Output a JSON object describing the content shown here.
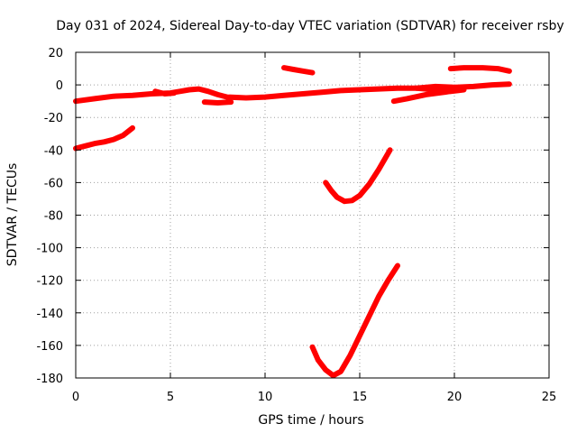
{
  "chart_data": {
    "type": "line",
    "title": "Day 031 of 2024, Sidereal Day-to-day VTEC variation (SDTVAR) for receiver rsby",
    "xlabel": "GPS time / hours",
    "ylabel": "SDTVAR / TECUs",
    "xlim": [
      0,
      25
    ],
    "ylim": [
      -180,
      20
    ],
    "xticks": [
      0,
      5,
      10,
      15,
      20,
      25
    ],
    "yticks": [
      20,
      0,
      -20,
      -40,
      -60,
      -80,
      -100,
      -120,
      -140,
      -160,
      -180
    ],
    "grid": true,
    "color": "#ff0000",
    "series": [
      {
        "values": [
          [
            0,
            -10
          ],
          [
            1,
            -8.5
          ],
          [
            2,
            -7
          ],
          [
            3,
            -6.5
          ],
          [
            4,
            -5.5
          ],
          [
            5,
            -5
          ],
          [
            5.5,
            -4
          ],
          [
            6,
            -3
          ],
          [
            6.5,
            -2.5
          ],
          [
            7,
            -4
          ],
          [
            7.5,
            -6
          ],
          [
            8,
            -7.5
          ],
          [
            9,
            -8
          ],
          [
            10,
            -7.5
          ],
          [
            11,
            -6.5
          ],
          [
            12,
            -5.5
          ],
          [
            13,
            -4.5
          ],
          [
            14,
            -3.5
          ],
          [
            15,
            -3
          ],
          [
            16,
            -2.5
          ],
          [
            17,
            -2
          ],
          [
            18,
            -2
          ],
          [
            19,
            -1
          ],
          [
            20,
            -1.5
          ],
          [
            21,
            -1
          ],
          [
            22,
            0
          ],
          [
            22.9,
            0.5
          ]
        ]
      },
      {
        "values": [
          [
            0,
            -39
          ],
          [
            0.5,
            -37.5
          ],
          [
            1,
            -36
          ],
          [
            1.5,
            -35
          ],
          [
            2,
            -33.5
          ],
          [
            2.5,
            -31
          ],
          [
            3,
            -26.5
          ]
        ]
      },
      {
        "values": [
          [
            4.2,
            -4
          ],
          [
            4.7,
            -5.5
          ],
          [
            5.2,
            -5
          ]
        ]
      },
      {
        "values": [
          [
            6.8,
            -10.5
          ],
          [
            7.5,
            -11
          ],
          [
            8.2,
            -10.5
          ]
        ]
      },
      {
        "values": [
          [
            11,
            10.5
          ],
          [
            11.5,
            9.5
          ],
          [
            12,
            8.5
          ],
          [
            12.5,
            7.5
          ]
        ]
      },
      {
        "values": [
          [
            13.2,
            -60
          ],
          [
            13.5,
            -65
          ],
          [
            13.8,
            -69
          ],
          [
            14.2,
            -71.5
          ],
          [
            14.6,
            -71
          ],
          [
            15,
            -68
          ],
          [
            15.5,
            -61
          ],
          [
            16,
            -52
          ],
          [
            16.3,
            -46
          ],
          [
            16.6,
            -40
          ]
        ]
      },
      {
        "values": [
          [
            12.5,
            -161
          ],
          [
            12.8,
            -169
          ],
          [
            13.2,
            -175
          ],
          [
            13.6,
            -178.5
          ],
          [
            14,
            -176
          ],
          [
            14.5,
            -166
          ],
          [
            15,
            -154
          ],
          [
            15.5,
            -142
          ],
          [
            16,
            -130
          ],
          [
            16.5,
            -120
          ],
          [
            17,
            -111
          ]
        ]
      },
      {
        "values": [
          [
            16.8,
            -10
          ],
          [
            17.5,
            -8.5
          ],
          [
            18.5,
            -6
          ],
          [
            19.5,
            -4.5
          ],
          [
            20,
            -3.5
          ]
        ]
      },
      {
        "values": [
          [
            18,
            -2
          ],
          [
            19,
            -3
          ],
          [
            19.8,
            -4
          ],
          [
            20.5,
            -3
          ]
        ]
      },
      {
        "values": [
          [
            19.8,
            10
          ],
          [
            20.5,
            10.5
          ],
          [
            21.5,
            10.5
          ],
          [
            22.3,
            10
          ],
          [
            22.9,
            8.5
          ]
        ]
      }
    ]
  }
}
